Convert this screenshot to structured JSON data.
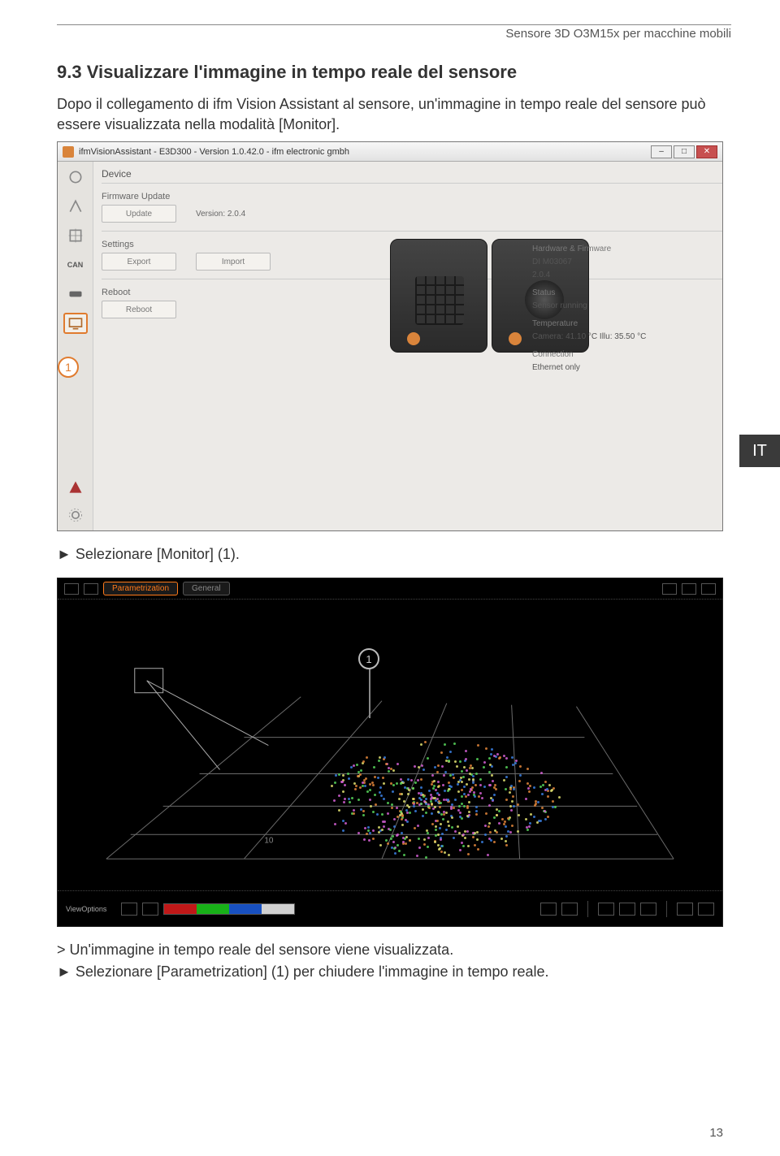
{
  "header": {
    "doc_title": "Sensore 3D O3M15x per macchine mobili"
  },
  "section": {
    "number": "9.3",
    "title": "Visualizzare l'immagine in tempo reale del sensore",
    "intro": "Dopo il collegamento di ifm Vision Assistant al sensore, un'immagine in tempo reale del sensore può essere visualizzata nella modalità [Monitor].",
    "step1": "►  Selezionare [Monitor] (1).",
    "result": ">  Un'immagine in tempo reale del sensore viene visualizzata.",
    "step2": "►  Selezionare [Parametrization] (1) per chiudere l'immagine in tempo reale."
  },
  "lang_badge": "IT",
  "page_number": "13",
  "screenshot1": {
    "window_title": "ifmVisionAssistant - E3D300 - Version 1.0.42.0 - ifm electronic gmbh",
    "panel_title": "Device",
    "firmware_label": "Firmware Update",
    "update_btn": "Update",
    "version_label": "Version:",
    "version_value": "2.0.4",
    "settings_label": "Settings",
    "export_btn": "Export",
    "import_btn": "Import",
    "reboot_label": "Reboot",
    "reboot_btn": "Reboot",
    "callout_num": "1",
    "rail_can": "CAN",
    "device_info": {
      "hw_label": "Hardware & Firmware",
      "hw_value": "DI M03067",
      "fw_value": "2.0.4",
      "status_label": "Status",
      "status_value": "Sensor running",
      "temp_label": "Temperature",
      "temp_value": "Camera: 41.10 °C Illu: 35.50 °C",
      "conn_label": "Connection",
      "conn_value": "Ethernet only"
    }
  },
  "screenshot2": {
    "tab1": "Parametrization",
    "tab2": "General",
    "callout_num": "1",
    "view_label": "ViewOptions",
    "colorbar": [
      "#c01818",
      "#18b018",
      "#1850c0",
      "#d0d0d0"
    ],
    "grid_color": "#6a6a6a",
    "point_colors": [
      "#57d65a",
      "#d35fd3",
      "#3a7fe0",
      "#e0e070",
      "#e0853a"
    ]
  }
}
